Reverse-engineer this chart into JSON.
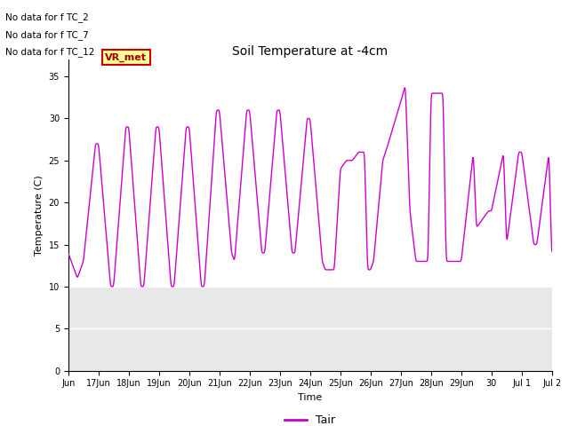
{
  "title": "Soil Temperature at -4cm",
  "xlabel": "Time",
  "ylabel": "Temperature (C)",
  "ylim": [
    0,
    37
  ],
  "yticks": [
    0,
    5,
    10,
    15,
    20,
    25,
    30,
    35
  ],
  "line_color": "#CC00CC",
  "line_width": 1.0,
  "background_color": "#ffffff",
  "plot_bg_color": "#e8e8e8",
  "active_region_bg": "#ffffff",
  "grid_color": "#ffffff",
  "annotations_text": [
    "No data for f TC_2",
    "No data for f TC_7",
    "No data for f TC_12"
  ],
  "annotation_box_text": "VR_met",
  "annotation_box_color": "#ffff99",
  "annotation_box_edge": "#cc0000",
  "legend_label": "Tair",
  "x_tick_labels": [
    "Jun",
    "17Jun",
    "18Jun",
    "19Jun",
    "20Jun",
    "21Jun",
    "22Jun",
    "23Jun",
    "24Jun",
    "25Jun",
    "26Jun",
    "27Jun",
    "28Jun",
    "29Jun",
    "30",
    "Jul 1",
    "Jul 2"
  ],
  "title_fontsize": 10,
  "tick_fontsize": 7,
  "label_fontsize": 8,
  "ann_fontsize": 7.5
}
